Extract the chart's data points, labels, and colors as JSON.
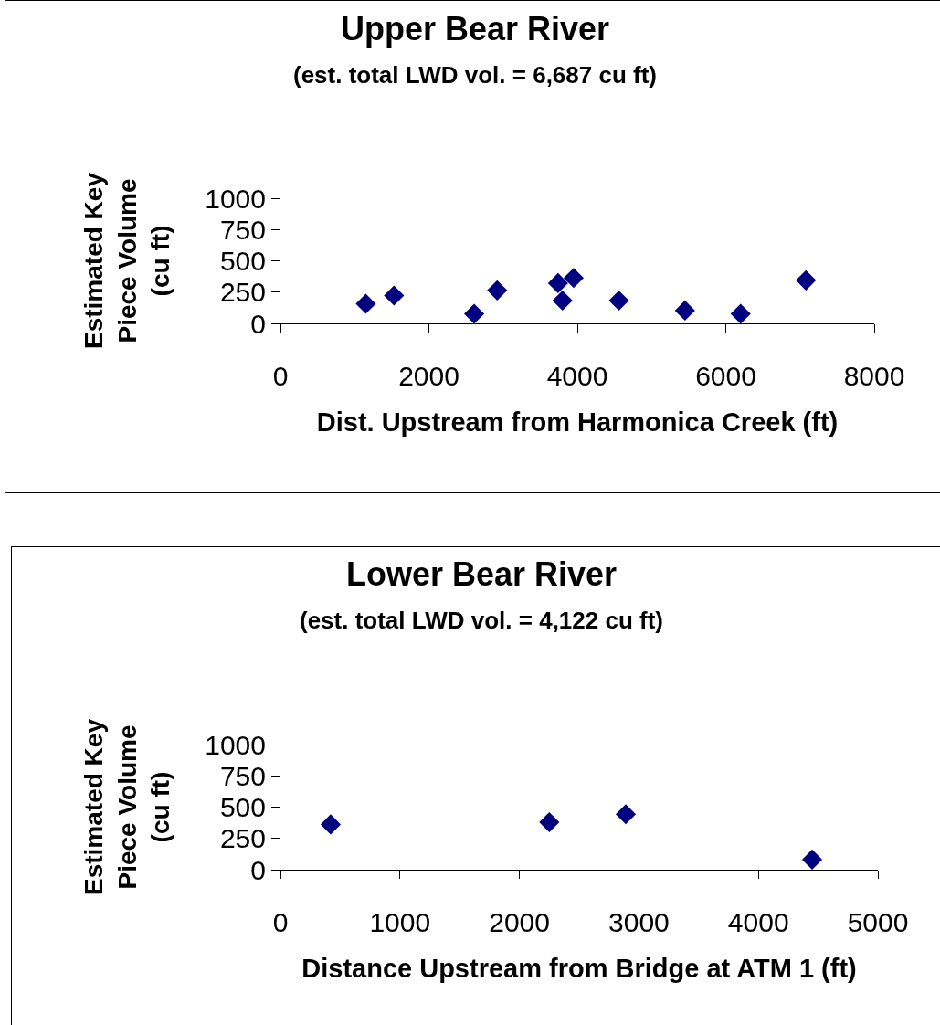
{
  "chart_data": [
    {
      "type": "scatter",
      "title": "Upper Bear River",
      "subtitle": "(est. total LWD vol. = 6,687 cu ft)",
      "xlabel": "Dist. Upstream from Harmonica Creek (ft)",
      "ylabel": "Estimated Key Piece Volume (cu ft)",
      "marker": "diamond",
      "grid": false,
      "x": [
        1150,
        1530,
        2610,
        2920,
        3740,
        3800,
        3950,
        4560,
        5450,
        6200,
        7080
      ],
      "series": [
        {
          "color": "#000080",
          "values": [
            157,
            223,
            77,
            264,
            322,
            183,
            363,
            183,
            103,
            77,
            344
          ]
        }
      ],
      "xlim": [
        0,
        8000
      ],
      "xticks": [
        0,
        2000,
        4000,
        6000,
        8000
      ],
      "ylim": [
        0,
        1000
      ],
      "yticks": [
        0,
        250,
        500,
        750,
        1000
      ]
    },
    {
      "type": "scatter",
      "title": "Lower Bear River",
      "subtitle": "(est. total LWD vol. = 4,122 cu ft)",
      "xlabel": "Distance Upstream from Bridge at ATM 1 (ft)",
      "ylabel": "Estimated Key Piece Volume (cu ft)",
      "marker": "diamond",
      "grid": false,
      "x": [
        420,
        2250,
        2890,
        4450
      ],
      "series": [
        {
          "color": "#000080",
          "values": [
            362,
            380,
            443,
            81
          ]
        }
      ],
      "xlim": [
        0,
        5000
      ],
      "xticks": [
        0,
        1000,
        2000,
        3000,
        4000,
        5000
      ],
      "ylim": [
        0,
        1000
      ],
      "yticks": [
        0,
        250,
        500,
        750,
        1000
      ]
    }
  ]
}
